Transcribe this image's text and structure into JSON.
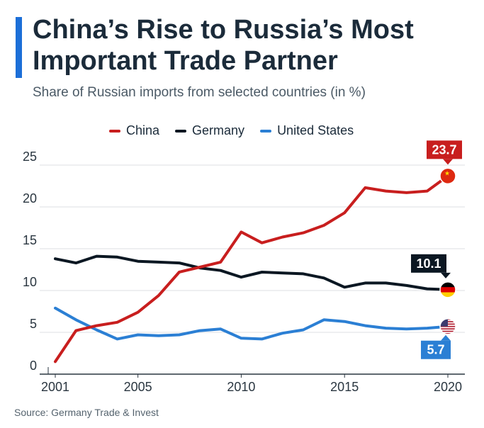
{
  "title": "China’s Rise to Russia’s Most Important Trade Partner",
  "subtitle": "Share of Russian imports from selected countries (in %)",
  "source": "Source: Germany Trade & Invest",
  "colors": {
    "accent": "#1c6fd8",
    "china": "#c81e1e",
    "germany": "#0b1722",
    "united_states": "#2b7fd4"
  },
  "chart_data": {
    "type": "line",
    "title": "China’s Rise to Russia’s Most Important Trade Partner",
    "subtitle": "Share of Russian imports from selected countries (in %)",
    "xlabel": "",
    "ylabel": "",
    "x": [
      2001,
      2002,
      2003,
      2004,
      2005,
      2006,
      2007,
      2008,
      2009,
      2010,
      2011,
      2012,
      2013,
      2014,
      2015,
      2016,
      2017,
      2018,
      2019,
      2020
    ],
    "x_ticks": [
      "2001",
      "2005",
      "2010",
      "2015",
      "2020"
    ],
    "y_ticks": [
      "0",
      "5",
      "10",
      "15",
      "20",
      "25"
    ],
    "xlim": [
      2001,
      2020
    ],
    "ylim": [
      0,
      25
    ],
    "grid": true,
    "legend_position": "top",
    "series": [
      {
        "name": "China",
        "color": "#c81e1e",
        "values": [
          1.5,
          5.2,
          5.8,
          6.2,
          7.4,
          9.4,
          12.2,
          12.8,
          13.4,
          17.0,
          15.7,
          16.4,
          16.9,
          17.8,
          19.3,
          22.3,
          21.9,
          21.7,
          21.9,
          23.7
        ],
        "end_label": "23.7",
        "flag_icon": "china-flag-icon"
      },
      {
        "name": "Germany",
        "color": "#0b1722",
        "values": [
          13.8,
          13.3,
          14.1,
          14.0,
          13.5,
          13.4,
          13.3,
          12.7,
          12.4,
          11.6,
          12.2,
          12.1,
          12.0,
          11.5,
          10.4,
          10.9,
          10.9,
          10.6,
          10.2,
          10.1
        ],
        "end_label": "10.1",
        "flag_icon": "germany-flag-icon"
      },
      {
        "name": "United States",
        "color": "#2b7fd4",
        "values": [
          7.9,
          6.5,
          5.3,
          4.2,
          4.7,
          4.6,
          4.7,
          5.2,
          5.4,
          4.3,
          4.2,
          4.9,
          5.3,
          6.5,
          6.3,
          5.8,
          5.5,
          5.4,
          5.5,
          5.7
        ],
        "end_label": "5.7",
        "flag_icon": "us-flag-icon"
      }
    ]
  }
}
